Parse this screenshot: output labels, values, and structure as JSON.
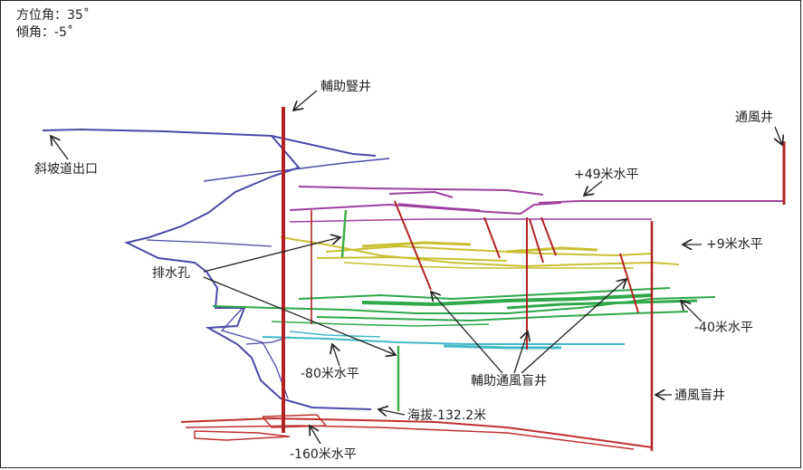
{
  "header": {
    "azimuth": "方位角：35˚",
    "dip": "傾角：-5˚"
  },
  "labels": {
    "aux_shaft": "輔助豎井",
    "vent_shaft": "通風井",
    "ramp_exit": "斜坡道出口",
    "level_p49": "+49米水平",
    "level_p9": "+9米水平",
    "drain_hole": "排水孔",
    "level_m40": "-40米水平",
    "level_m80": "-80米水平",
    "aux_vent_blind_shaft": "輔助通風盲井",
    "vent_blind_shaft": "通風盲井",
    "elevation": "海拔-132.2米",
    "level_m160": "-160米水平"
  },
  "colors": {
    "shaft": "#b22222",
    "level_p49": "#a040a0",
    "level_p9": "#c8c030",
    "level_m40": "#2ea84a",
    "level_m80": "#40b8c8",
    "level_m160": "#c03030",
    "ramp": "#4a4aa8",
    "drain": "#3db04a"
  }
}
